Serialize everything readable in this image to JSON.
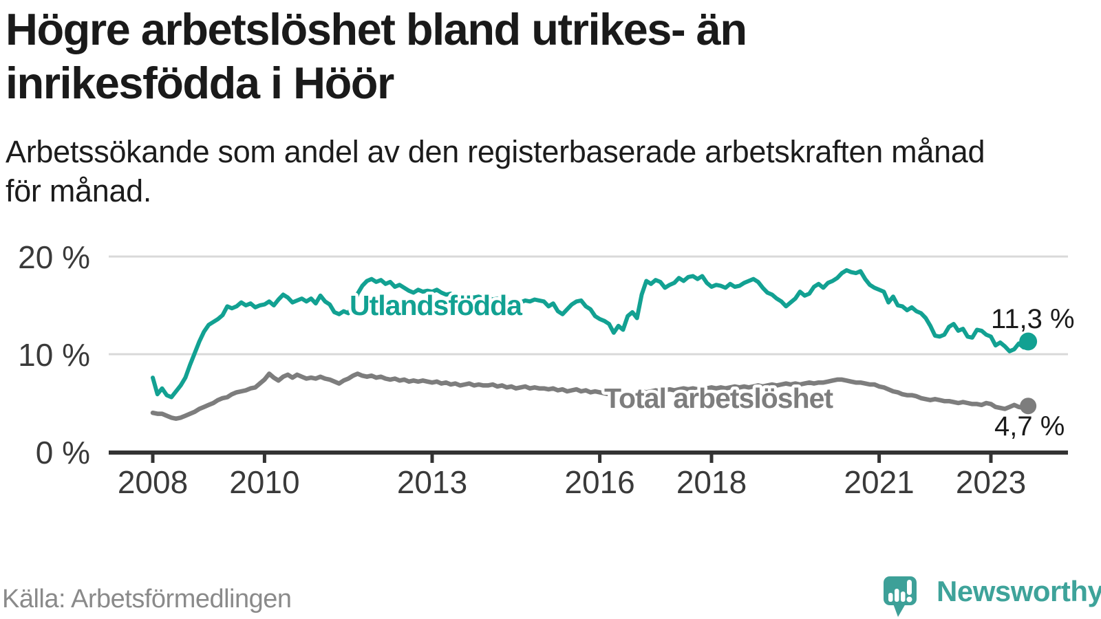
{
  "title_lines": [
    "Högre arbetslöshet bland utrikes- än",
    "inrikesfödda i Höör"
  ],
  "subtitle_lines": [
    "Arbetssökande som andel av den registerbaserade arbetskraften månad",
    "för månad."
  ],
  "source_label": "Källa: Arbetsförmedlingen",
  "branding": {
    "name": "Newsworthy",
    "icon": "speech-bubble-bar-chart-exclamation-icon",
    "icon_color": "#3da098",
    "text_color": "#3ea39a"
  },
  "colors": {
    "foreign_born_series": "#12a192",
    "total_series": "#7d7d7d",
    "grid_line": "#d9d9d9",
    "axis_line": "#333333",
    "axis_label": "#3a3a3a",
    "value_label": "#1a1a1a",
    "title_text": "#1a1a1a",
    "muted_text": "#8a8a8a",
    "background": "#ffffff"
  },
  "chart_data": {
    "type": "line",
    "title": "Högre arbetslöshet bland utrikes- än inrikesfödda i Höör",
    "subtitle": "Arbetssökande som andel av den registerbaserade arbetskraften månad för månad.",
    "unit": "%",
    "x_interval": "monthly",
    "x_start": "2008-01",
    "x_end": "2023-09",
    "grid": true,
    "legend": "inline-labels",
    "ylim": [
      0,
      21.5
    ],
    "y_ticks": [
      {
        "value": 20,
        "label": "20 %"
      },
      {
        "value": 10,
        "label": "10 %"
      },
      {
        "value": 0,
        "label": "0 %"
      }
    ],
    "x_ticks": [
      {
        "year": 2008,
        "label": "2008"
      },
      {
        "year": 2010,
        "label": "2010"
      },
      {
        "year": 2013,
        "label": "2013"
      },
      {
        "year": 2016,
        "label": "2016"
      },
      {
        "year": 2018,
        "label": "2018"
      },
      {
        "year": 2021,
        "label": "2021"
      },
      {
        "year": 2023,
        "label": "2023"
      }
    ],
    "series": [
      {
        "name": "Utlandsfödda",
        "color": "#12a192",
        "end_value": 11.3,
        "end_label": "11,3 %",
        "start_year": 2008,
        "values": [
          7.6,
          5.9,
          6.5,
          5.8,
          5.6,
          6.2,
          6.8,
          7.6,
          8.9,
          10.1,
          11.3,
          12.3,
          13.0,
          13.3,
          13.6,
          14.0,
          14.9,
          14.7,
          14.9,
          15.3,
          15.0,
          15.2,
          14.8,
          15.0,
          15.1,
          15.4,
          15.0,
          15.6,
          16.1,
          15.8,
          15.3,
          15.5,
          15.7,
          15.4,
          15.7,
          15.2,
          16.0,
          15.4,
          15.1,
          14.3,
          14.1,
          14.4,
          14.2,
          15.0,
          16.2,
          17.0,
          17.5,
          17.7,
          17.4,
          17.6,
          17.2,
          17.4,
          16.9,
          17.1,
          16.8,
          16.5,
          16.3,
          16.6,
          16.4,
          16.5,
          16.4,
          16.6,
          16.3,
          16.1,
          16.2,
          16.0,
          15.9,
          16.1,
          15.9,
          15.8,
          15.9,
          15.7,
          15.8,
          15.6,
          15.7,
          15.5,
          15.6,
          15.4,
          15.5,
          15.3,
          15.5,
          15.4,
          15.6,
          15.5,
          15.4,
          14.9,
          15.2,
          14.4,
          14.1,
          14.6,
          15.1,
          15.4,
          15.5,
          14.9,
          14.6,
          13.9,
          13.6,
          13.4,
          13.1,
          12.2,
          12.9,
          12.5,
          13.9,
          14.3,
          13.7,
          16.1,
          17.5,
          17.2,
          17.6,
          17.4,
          16.8,
          17.1,
          17.3,
          17.8,
          17.5,
          17.9,
          18.0,
          17.7,
          18.0,
          17.3,
          16.9,
          17.1,
          17.0,
          16.8,
          17.2,
          16.9,
          17.0,
          17.3,
          17.5,
          17.7,
          17.4,
          16.8,
          16.3,
          16.1,
          15.7,
          15.4,
          14.9,
          15.3,
          15.7,
          16.4,
          16.0,
          16.2,
          16.9,
          17.2,
          16.8,
          17.3,
          17.5,
          17.8,
          18.3,
          18.6,
          18.4,
          18.3,
          18.5,
          17.7,
          17.1,
          16.8,
          16.6,
          16.4,
          15.3,
          15.9,
          15.0,
          14.9,
          14.5,
          14.8,
          14.4,
          14.2,
          13.7,
          12.9,
          11.9,
          11.8,
          12.0,
          12.8,
          13.1,
          12.4,
          12.6,
          11.8,
          11.7,
          12.5,
          12.4,
          12.0,
          11.8,
          10.9,
          11.2,
          10.8,
          10.3,
          10.5,
          11.1,
          10.7,
          11.3
        ]
      },
      {
        "name": "Total arbetslöshet",
        "color": "#7d7d7d",
        "end_value": 4.7,
        "end_label": "4,7 %",
        "start_year": 2008,
        "values": [
          4.0,
          3.9,
          3.9,
          3.7,
          3.5,
          3.4,
          3.5,
          3.7,
          3.9,
          4.1,
          4.4,
          4.6,
          4.8,
          5.0,
          5.3,
          5.5,
          5.6,
          5.9,
          6.1,
          6.2,
          6.3,
          6.5,
          6.6,
          7.0,
          7.4,
          8.0,
          7.6,
          7.3,
          7.7,
          7.9,
          7.6,
          7.9,
          7.7,
          7.5,
          7.6,
          7.5,
          7.7,
          7.5,
          7.4,
          7.2,
          7.0,
          7.3,
          7.5,
          7.8,
          8.0,
          7.8,
          7.7,
          7.8,
          7.6,
          7.7,
          7.5,
          7.4,
          7.5,
          7.3,
          7.4,
          7.2,
          7.3,
          7.2,
          7.3,
          7.2,
          7.1,
          7.2,
          7.0,
          7.1,
          6.9,
          7.0,
          6.8,
          6.9,
          7.0,
          6.8,
          6.9,
          6.8,
          6.8,
          6.9,
          6.7,
          6.8,
          6.6,
          6.7,
          6.5,
          6.6,
          6.7,
          6.5,
          6.6,
          6.5,
          6.5,
          6.4,
          6.5,
          6.3,
          6.4,
          6.2,
          6.3,
          6.4,
          6.2,
          6.3,
          6.1,
          6.2,
          6.1,
          6.0,
          5.9,
          6.0,
          5.9,
          6.0,
          6.1,
          6.0,
          6.1,
          6.2,
          6.1,
          6.2,
          6.3,
          6.2,
          6.3,
          6.4,
          6.3,
          6.4,
          6.5,
          6.4,
          6.5,
          6.4,
          6.5,
          6.5,
          6.6,
          6.5,
          6.6,
          6.5,
          6.6,
          6.7,
          6.6,
          6.7,
          6.6,
          6.7,
          6.8,
          6.7,
          6.8,
          6.9,
          6.8,
          6.9,
          7.0,
          6.9,
          7.0,
          6.9,
          7.0,
          7.1,
          7.0,
          7.1,
          7.1,
          7.2,
          7.3,
          7.4,
          7.4,
          7.3,
          7.2,
          7.1,
          7.1,
          7.0,
          6.9,
          6.9,
          6.7,
          6.6,
          6.4,
          6.2,
          6.1,
          5.9,
          5.8,
          5.8,
          5.7,
          5.5,
          5.4,
          5.3,
          5.4,
          5.3,
          5.2,
          5.2,
          5.1,
          5.0,
          5.1,
          5.0,
          4.9,
          4.9,
          4.8,
          5.0,
          4.9,
          4.6,
          4.5,
          4.4,
          4.6,
          4.8,
          4.6,
          4.5,
          4.7
        ]
      }
    ]
  }
}
